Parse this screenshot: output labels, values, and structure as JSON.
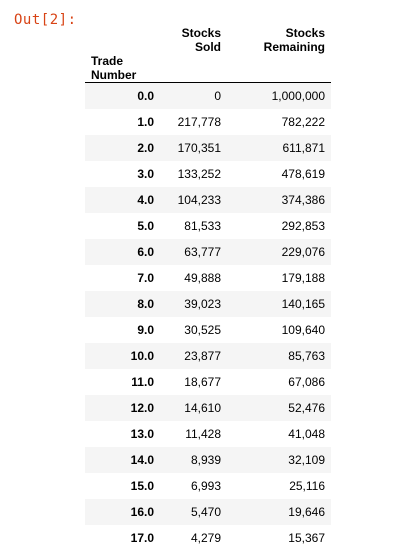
{
  "prompt": "Out[2]:",
  "table": {
    "columns": [
      "Stocks Sold",
      "Stocks Remaining"
    ],
    "index_name": "Trade Number",
    "rows": [
      {
        "index": "0.0",
        "values": [
          "0",
          "1,000,000"
        ]
      },
      {
        "index": "1.0",
        "values": [
          "217,778",
          "782,222"
        ]
      },
      {
        "index": "2.0",
        "values": [
          "170,351",
          "611,871"
        ]
      },
      {
        "index": "3.0",
        "values": [
          "133,252",
          "478,619"
        ]
      },
      {
        "index": "4.0",
        "values": [
          "104,233",
          "374,386"
        ]
      },
      {
        "index": "5.0",
        "values": [
          "81,533",
          "292,853"
        ]
      },
      {
        "index": "6.0",
        "values": [
          "63,777",
          "229,076"
        ]
      },
      {
        "index": "7.0",
        "values": [
          "49,888",
          "179,188"
        ]
      },
      {
        "index": "8.0",
        "values": [
          "39,023",
          "140,165"
        ]
      },
      {
        "index": "9.0",
        "values": [
          "30,525",
          "109,640"
        ]
      },
      {
        "index": "10.0",
        "values": [
          "23,877",
          "85,763"
        ]
      },
      {
        "index": "11.0",
        "values": [
          "18,677",
          "67,086"
        ]
      },
      {
        "index": "12.0",
        "values": [
          "14,610",
          "52,476"
        ]
      },
      {
        "index": "13.0",
        "values": [
          "11,428",
          "41,048"
        ]
      },
      {
        "index": "14.0",
        "values": [
          "8,939",
          "32,109"
        ]
      },
      {
        "index": "15.0",
        "values": [
          "6,993",
          "25,116"
        ]
      },
      {
        "index": "16.0",
        "values": [
          "5,470",
          "19,646"
        ]
      },
      {
        "index": "17.0",
        "values": [
          "4,279",
          "15,367"
        ]
      }
    ]
  }
}
